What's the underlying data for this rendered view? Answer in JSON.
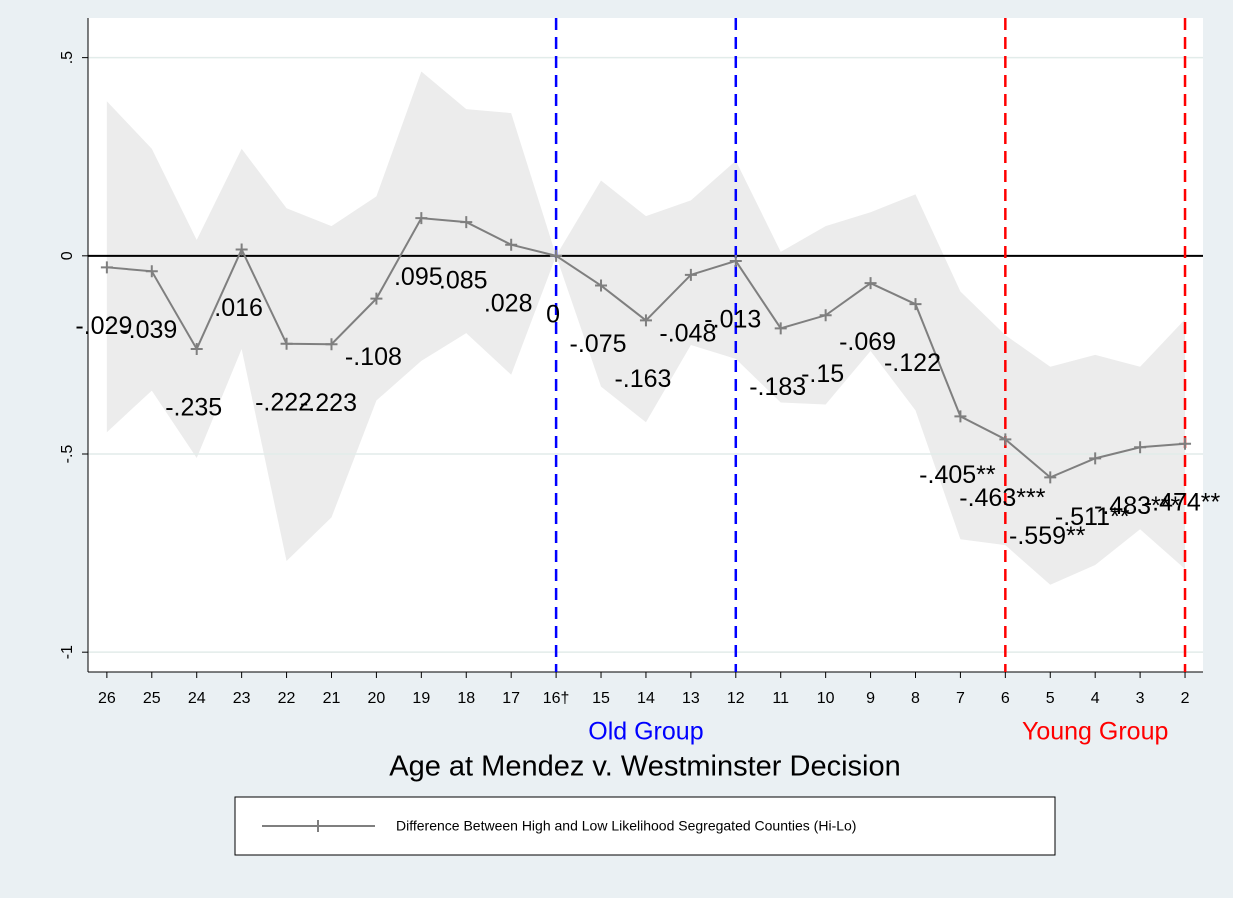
{
  "chart_data": {
    "type": "line",
    "x_label": "Age at Mendez v. Westminster Decision",
    "x": [
      26,
      25,
      24,
      23,
      22,
      21,
      20,
      19,
      18,
      17,
      16,
      15,
      14,
      13,
      12,
      11,
      10,
      9,
      8,
      7,
      6,
      5,
      4,
      3,
      2
    ],
    "xlim": [
      26.42,
      1.6
    ],
    "xticks": [
      26,
      25,
      24,
      23,
      22,
      21,
      20,
      19,
      18,
      17,
      {
        "value": 16,
        "label": "16†"
      },
      15,
      14,
      13,
      12,
      11,
      10,
      9,
      8,
      7,
      6,
      5,
      4,
      3,
      2
    ],
    "ylim": [
      -1.05,
      0.6
    ],
    "yticks": [
      {
        "value": -1,
        "label": "-1"
      },
      {
        "value": -0.5,
        "label": "-.5"
      },
      0,
      {
        "value": 0.5,
        "label": ".5"
      }
    ],
    "grid": true,
    "series": [
      {
        "name": "Difference Between High and Low Likelihood Segregated Counties (Hi-Lo)",
        "color": "#7f7f7f",
        "values": [
          -0.029,
          -0.039,
          -0.235,
          0.016,
          -0.222,
          -0.223,
          -0.108,
          0.095,
          0.085,
          0.028,
          0,
          -0.075,
          -0.163,
          -0.048,
          -0.013,
          -0.183,
          -0.15,
          -0.069,
          -0.122,
          -0.405,
          -0.463,
          -0.559,
          -0.511,
          -0.483,
          -0.474
        ],
        "value_labels": [
          "-.029",
          "-.039",
          "-.235",
          ".016",
          "-.222",
          "-.223",
          "-.108",
          ".095",
          ".085",
          ".028",
          "0",
          "-.075",
          "-.163",
          "-.048",
          "-.013",
          "-.183",
          "-.15",
          "-.069",
          "-.122",
          "-.405**",
          "-.463***",
          "-.559**",
          "-.511**",
          "-.483***",
          "-.474**"
        ]
      }
    ],
    "band": {
      "color": "#ececec",
      "upper": [
        0.39,
        0.27,
        0.04,
        0.27,
        0.12,
        0.075,
        0.15,
        0.465,
        0.37,
        0.36,
        0,
        0.19,
        0.1,
        0.14,
        0.24,
        0.01,
        0.075,
        0.11,
        0.155,
        -0.09,
        -0.2,
        -0.28,
        -0.25,
        -0.28,
        -0.16
      ],
      "lower": [
        -0.445,
        -0.34,
        -0.51,
        -0.235,
        -0.77,
        -0.66,
        -0.365,
        -0.265,
        -0.195,
        -0.3,
        0,
        -0.33,
        -0.42,
        -0.225,
        -0.26,
        -0.37,
        -0.375,
        -0.24,
        -0.39,
        -0.715,
        -0.73,
        -0.83,
        -0.78,
        -0.69,
        -0.79
      ]
    },
    "groups": [
      {
        "label": "Old Group",
        "color": "#0000ff",
        "x": [
          16,
          12
        ]
      },
      {
        "label": "Young Group",
        "color": "#ff0000",
        "x": [
          6,
          2
        ]
      }
    ],
    "legend": "bottom"
  }
}
